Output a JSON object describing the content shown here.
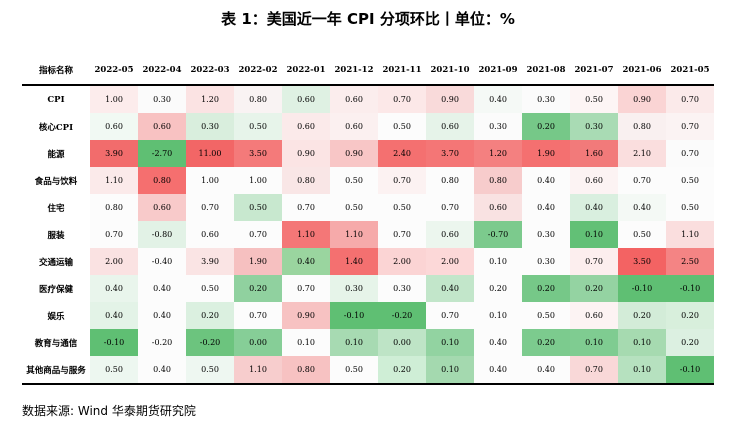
{
  "title": "表 1：美国近一年 CPI 分项环比丨单位：%",
  "header_label": "指标名称",
  "columns": [
    "2022-05",
    "2022-04",
    "2022-03",
    "2022-02",
    "2022-01",
    "2021-12",
    "2021-11",
    "2021-10",
    "2021-09",
    "2021-08",
    "2021-07",
    "2021-06",
    "2021-05"
  ],
  "rows": [
    {
      "label": "CPI",
      "values": [
        "1.00",
        "0.30",
        "1.20",
        "0.80",
        "0.60",
        "0.60",
        "0.70",
        "0.90",
        "0.40",
        "0.30",
        "0.50",
        "0.90",
        "0.70"
      ],
      "colors": [
        "#fcecec",
        "#fbfbfb",
        "#fbe3e3",
        "#f9f3f3",
        "#dff1e3",
        "#fbeded",
        "#fce8e8",
        "#f9dada",
        "#f5f9f6",
        "#fbfbfb",
        "#fdf5f5",
        "#fad4d4",
        "#fbeaea"
      ]
    },
    {
      "label": "核心CPI",
      "values": [
        "0.60",
        "0.60",
        "0.30",
        "0.50",
        "0.60",
        "0.60",
        "0.50",
        "0.60",
        "0.30",
        "0.20",
        "0.30",
        "0.80",
        "0.70"
      ],
      "colors": [
        "#f1f9f3",
        "#f8c2c2",
        "#d9eedd",
        "#e7f4ea",
        "#fbeaea",
        "#fbf0f0",
        "#fcfcfc",
        "#e6f3e9",
        "#fbfbfb",
        "#76c888",
        "#a9dbb4",
        "#f9f0f0",
        "#fbf3f3"
      ]
    },
    {
      "label": "能源",
      "values": [
        "3.90",
        "-2.70",
        "11.00",
        "3.50",
        "0.90",
        "0.90",
        "2.40",
        "3.70",
        "1.20",
        "1.90",
        "1.60",
        "2.10",
        "0.70"
      ],
      "colors": [
        "#f26c6c",
        "#5fbf73",
        "#f26666",
        "#f47a7a",
        "#fbe4e4",
        "#f8c6c6",
        "#f47070",
        "#f47676",
        "#f48080",
        "#f47070",
        "#f27a7a",
        "#fadede",
        "#fbfbfb"
      ]
    },
    {
      "label": "食品与饮料",
      "values": [
        "1.10",
        "0.80",
        "1.00",
        "1.00",
        "0.80",
        "0.50",
        "0.70",
        "0.80",
        "0.80",
        "0.40",
        "0.60",
        "0.70",
        "0.50"
      ],
      "colors": [
        "#fbeaea",
        "#f56f6f",
        "#fcfcfc",
        "#fcfcfc",
        "#f9e6e6",
        "#fcfcfc",
        "#fcf2f2",
        "#fcfcfc",
        "#f7cccc",
        "#fcfcfc",
        "#fcf3f3",
        "#fcfcfc",
        "#fcfcfc"
      ]
    },
    {
      "label": "住宅",
      "values": [
        "0.80",
        "0.60",
        "0.70",
        "0.50",
        "0.70",
        "0.50",
        "0.50",
        "0.70",
        "0.60",
        "0.40",
        "0.40",
        "0.40",
        "0.50"
      ],
      "colors": [
        "#fcfcfc",
        "#f8caca",
        "#fcfcfc",
        "#c8e8cf",
        "#fcfcfc",
        "#fcfcfc",
        "#fcfcfc",
        "#fcfcfc",
        "#f9e2e2",
        "#fcfcfc",
        "#d9efdf",
        "#f4f9f5",
        "#fcfcfc"
      ]
    },
    {
      "label": "服装",
      "values": [
        "0.70",
        "-0.80",
        "0.60",
        "0.70",
        "1.10",
        "1.10",
        "0.70",
        "0.60",
        "-0.70",
        "0.30",
        "0.10",
        "0.50",
        "1.10"
      ],
      "colors": [
        "#fcfcfc",
        "#e2f2e6",
        "#fcfcfc",
        "#fcfcfc",
        "#f47777",
        "#f6aaaa",
        "#fcfcfc",
        "#ecf6ee",
        "#7cca8d",
        "#fcfcfc",
        "#62c076",
        "#fcfcfc",
        "#fadede"
      ]
    },
    {
      "label": "交通运输",
      "values": [
        "2.00",
        "-0.40",
        "3.90",
        "1.90",
        "0.40",
        "1.40",
        "2.00",
        "2.00",
        "0.10",
        "0.30",
        "0.70",
        "3.50",
        "2.50"
      ],
      "colors": [
        "#fae2e2",
        "#fcfcfc",
        "#fae4e4",
        "#f6c0c0",
        "#9ad59f",
        "#f47070",
        "#fbd4d4",
        "#fcd8d8",
        "#fcfcfc",
        "#fcfcfc",
        "#fceeee",
        "#f36363",
        "#f48484"
      ]
    },
    {
      "label": "医疗保健",
      "values": [
        "0.40",
        "0.40",
        "0.50",
        "0.20",
        "0.70",
        "0.30",
        "0.30",
        "0.40",
        "0.20",
        "0.20",
        "0.20",
        "-0.10",
        "-0.10"
      ],
      "colors": [
        "#e9f5ec",
        "#fcfcfc",
        "#fcfcfc",
        "#90d19f",
        "#fcfcfc",
        "#e6f4e9",
        "#fcfcfc",
        "#c2e6ca",
        "#fcfcfc",
        "#76c888",
        "#94d3a2",
        "#5fbf73",
        "#5fbf73"
      ]
    },
    {
      "label": "娱乐",
      "values": [
        "0.40",
        "0.40",
        "0.20",
        "0.70",
        "0.90",
        "-0.10",
        "-0.20",
        "0.70",
        "0.10",
        "0.50",
        "0.60",
        "0.20",
        "0.20"
      ],
      "colors": [
        "#e3f3e7",
        "#fcfcfc",
        "#dbf0e0",
        "#fcfcfc",
        "#f7c2c2",
        "#5fbf73",
        "#5fbf73",
        "#fcfcfc",
        "#fcfcfc",
        "#fcfcfc",
        "#fcf3f3",
        "#d3ecd8",
        "#d8efdc"
      ]
    },
    {
      "label": "教育与通信",
      "values": [
        "-0.10",
        "-0.20",
        "-0.20",
        "0.00",
        "0.10",
        "0.10",
        "0.00",
        "0.10",
        "0.40",
        "0.20",
        "0.10",
        "0.10",
        "0.20"
      ],
      "colors": [
        "#5fbf73",
        "#fcfcfc",
        "#6cc47e",
        "#86ce97",
        "#fcfcfc",
        "#a7dab2",
        "#bee4c6",
        "#92d3a1",
        "#fcfcfc",
        "#7ccb8e",
        "#7fcc91",
        "#a6dab0",
        "#dcf0e1"
      ]
    },
    {
      "label": "其他商品与服务",
      "values": [
        "0.50",
        "0.40",
        "0.50",
        "1.10",
        "0.80",
        "0.50",
        "0.20",
        "0.10",
        "0.40",
        "0.40",
        "0.70",
        "0.10",
        "-0.10"
      ],
      "colors": [
        "#edf7f0",
        "#fcfcfc",
        "#eef7f1",
        "#f7cdcd",
        "#f7c2c2",
        "#fcfcfc",
        "#cfeed6",
        "#a4d9af",
        "#fcfcfc",
        "#fcfcfc",
        "#f9d8d8",
        "#b6e1bf",
        "#5fbf73"
      ]
    }
  ],
  "source": "数据来源:  Wind  华泰期货研究院"
}
